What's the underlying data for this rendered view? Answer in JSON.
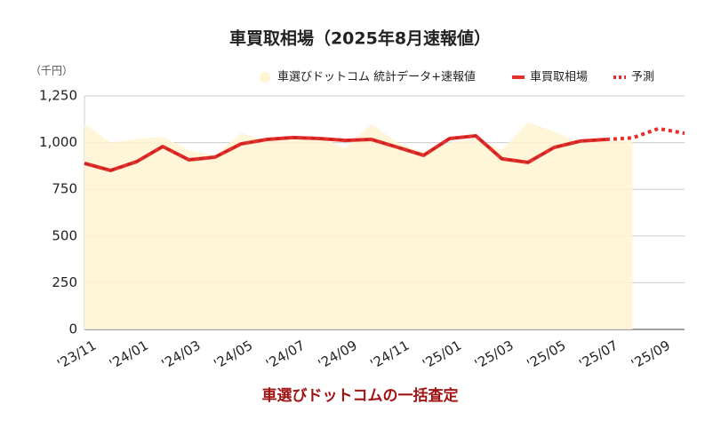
{
  "chart_data": {
    "type": "line",
    "title": "車買取相場（2025年8月速報値）",
    "y_unit_label": "（千円）",
    "caption": "車選びドットコムの一括査定",
    "categories": [
      "'23/11",
      null,
      "'24/01",
      null,
      "'24/03",
      null,
      "'24/05",
      null,
      "'24/07",
      null,
      "'24/09",
      null,
      "'24/11",
      null,
      "'25/01",
      null,
      "'25/03",
      null,
      "'25/05",
      null,
      "'25/07",
      null,
      "'25/09",
      null
    ],
    "series": [
      {
        "name": "車選びドットコム 統計データ+速報値",
        "kind": "area",
        "color": "#fff4d2",
        "values": [
          1100,
          1000,
          1020,
          1030,
          960,
          930,
          1050,
          1010,
          1020,
          1030,
          970,
          1100,
          1000,
          950,
          1000,
          1020,
          960,
          1110,
          1060,
          1000,
          1010,
          1010,
          null,
          null
        ]
      },
      {
        "name": "車買取相場",
        "kind": "line",
        "color": "#e3302c",
        "values": [
          889,
          851,
          898,
          979,
          908,
          922,
          993,
          1017,
          1027,
          1022,
          1012,
          1017,
          975,
          932,
          1022,
          1036,
          913,
          894,
          974,
          1008,
          1017,
          null,
          null,
          null
        ]
      },
      {
        "name": "予測",
        "kind": "dotted",
        "color": "#e3302c",
        "values": [
          null,
          null,
          null,
          null,
          null,
          null,
          null,
          null,
          null,
          null,
          null,
          null,
          null,
          null,
          null,
          null,
          null,
          null,
          null,
          null,
          1017,
          1025,
          1075,
          1050
        ]
      }
    ],
    "ylim": [
      0,
      1250
    ],
    "yticks": [
      0,
      250,
      500,
      750,
      {
        "value": 1000,
        "label": "1,000"
      },
      {
        "value": 1250,
        "label": "1,250"
      }
    ],
    "grid": true
  }
}
